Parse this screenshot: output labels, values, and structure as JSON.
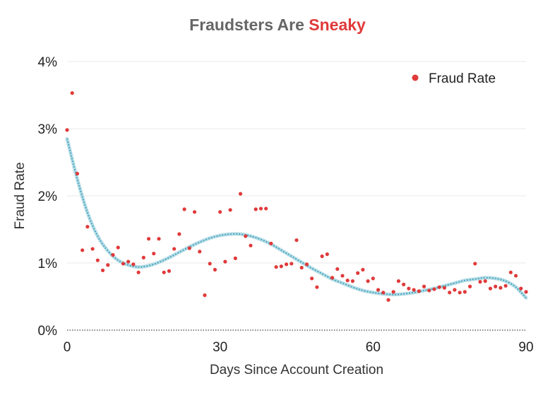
{
  "chart_data": {
    "type": "scatter",
    "title": {
      "prefix": "Fraudsters Are",
      "highlight": "Sneaky",
      "prefix_color": "#666666",
      "highlight_color": "#e03a3a"
    },
    "xlabel": "Days Since Account Creation",
    "ylabel": "Fraud Rate",
    "xlim": [
      0,
      90
    ],
    "ylim": [
      0,
      4
    ],
    "x_ticks": [
      {
        "value": 0,
        "label": "0"
      },
      {
        "value": 30,
        "label": "30"
      },
      {
        "value": 60,
        "label": "60"
      },
      {
        "value": 90,
        "label": "90"
      }
    ],
    "y_ticks": [
      {
        "value": 0,
        "label": "0%"
      },
      {
        "value": 1,
        "label": "1%"
      },
      {
        "value": 2,
        "label": "2%"
      },
      {
        "value": 3,
        "label": "3%"
      },
      {
        "value": 4,
        "label": "4%"
      }
    ],
    "grid": "horizontal",
    "legend": {
      "position": "top-right",
      "entries": [
        {
          "label": "Fraud Rate",
          "color": "#e03a3a"
        }
      ]
    },
    "series": [
      {
        "name": "Fraud Rate",
        "color": "#e03a3a",
        "points": [
          [
            0,
            2.98
          ],
          [
            1,
            3.53
          ],
          [
            2,
            2.33
          ],
          [
            3,
            1.19
          ],
          [
            4,
            1.54
          ],
          [
            5,
            1.21
          ],
          [
            6,
            1.04
          ],
          [
            7,
            0.89
          ],
          [
            8,
            0.97
          ],
          [
            9,
            1.12
          ],
          [
            10,
            1.23
          ],
          [
            11,
            0.99
          ],
          [
            12,
            1.02
          ],
          [
            13,
            0.98
          ],
          [
            14,
            0.86
          ],
          [
            15,
            1.08
          ],
          [
            16,
            1.36
          ],
          [
            17,
            1.14
          ],
          [
            18,
            1.36
          ],
          [
            19,
            0.86
          ],
          [
            20,
            0.88
          ],
          [
            21,
            1.21
          ],
          [
            22,
            1.43
          ],
          [
            23,
            1.8
          ],
          [
            24,
            1.22
          ],
          [
            25,
            1.76
          ],
          [
            26,
            1.17
          ],
          [
            27,
            0.52
          ],
          [
            28,
            0.99
          ],
          [
            29,
            0.9
          ],
          [
            30,
            1.76
          ],
          [
            31,
            1.02
          ],
          [
            32,
            1.79
          ],
          [
            33,
            1.07
          ],
          [
            34,
            2.03
          ],
          [
            35,
            1.4
          ],
          [
            36,
            1.26
          ],
          [
            37,
            1.8
          ],
          [
            38,
            1.81
          ],
          [
            39,
            1.81
          ],
          [
            40,
            1.29
          ],
          [
            41,
            0.94
          ],
          [
            42,
            0.95
          ],
          [
            43,
            0.98
          ],
          [
            44,
            0.99
          ],
          [
            45,
            1.34
          ],
          [
            46,
            0.93
          ],
          [
            47,
            0.98
          ],
          [
            48,
            0.77
          ],
          [
            49,
            0.64
          ],
          [
            50,
            1.1
          ],
          [
            51,
            1.13
          ],
          [
            52,
            0.78
          ],
          [
            53,
            0.91
          ],
          [
            54,
            0.81
          ],
          [
            55,
            0.74
          ],
          [
            56,
            0.73
          ],
          [
            57,
            0.85
          ],
          [
            58,
            0.9
          ],
          [
            59,
            0.73
          ],
          [
            60,
            0.77
          ],
          [
            61,
            0.6
          ],
          [
            62,
            0.56
          ],
          [
            63,
            0.45
          ],
          [
            64,
            0.57
          ],
          [
            65,
            0.73
          ],
          [
            66,
            0.68
          ],
          [
            67,
            0.62
          ],
          [
            68,
            0.6
          ],
          [
            69,
            0.58
          ],
          [
            70,
            0.65
          ],
          [
            71,
            0.59
          ],
          [
            72,
            0.61
          ],
          [
            73,
            0.64
          ],
          [
            74,
            0.63
          ],
          [
            75,
            0.56
          ],
          [
            76,
            0.6
          ],
          [
            77,
            0.56
          ],
          [
            78,
            0.57
          ],
          [
            79,
            0.65
          ],
          [
            80,
            0.99
          ],
          [
            81,
            0.72
          ],
          [
            82,
            0.73
          ],
          [
            83,
            0.62
          ],
          [
            84,
            0.65
          ],
          [
            85,
            0.63
          ],
          [
            86,
            0.66
          ],
          [
            87,
            0.86
          ],
          [
            88,
            0.81
          ],
          [
            89,
            0.62
          ],
          [
            90,
            0.57
          ]
        ]
      }
    ],
    "trend_line": {
      "color": "#4aa8c0",
      "points": [
        [
          0,
          2.85
        ],
        [
          2,
          2.25
        ],
        [
          4,
          1.75
        ],
        [
          6,
          1.4
        ],
        [
          8,
          1.18
        ],
        [
          10,
          1.04
        ],
        [
          12,
          0.97
        ],
        [
          14,
          0.94
        ],
        [
          16,
          0.96
        ],
        [
          18,
          1.01
        ],
        [
          20,
          1.08
        ],
        [
          22,
          1.16
        ],
        [
          24,
          1.24
        ],
        [
          26,
          1.31
        ],
        [
          28,
          1.37
        ],
        [
          30,
          1.41
        ],
        [
          32,
          1.43
        ],
        [
          34,
          1.43
        ],
        [
          36,
          1.4
        ],
        [
          38,
          1.35
        ],
        [
          40,
          1.28
        ],
        [
          42,
          1.19
        ],
        [
          44,
          1.1
        ],
        [
          46,
          1.01
        ],
        [
          48,
          0.92
        ],
        [
          50,
          0.84
        ],
        [
          52,
          0.76
        ],
        [
          54,
          0.7
        ],
        [
          56,
          0.64
        ],
        [
          58,
          0.59
        ],
        [
          60,
          0.56
        ],
        [
          62,
          0.54
        ],
        [
          64,
          0.53
        ],
        [
          66,
          0.54
        ],
        [
          68,
          0.56
        ],
        [
          70,
          0.59
        ],
        [
          72,
          0.62
        ],
        [
          74,
          0.66
        ],
        [
          76,
          0.7
        ],
        [
          78,
          0.74
        ],
        [
          80,
          0.76
        ],
        [
          82,
          0.78
        ],
        [
          84,
          0.77
        ],
        [
          86,
          0.73
        ],
        [
          88,
          0.64
        ],
        [
          90,
          0.48
        ]
      ]
    }
  }
}
